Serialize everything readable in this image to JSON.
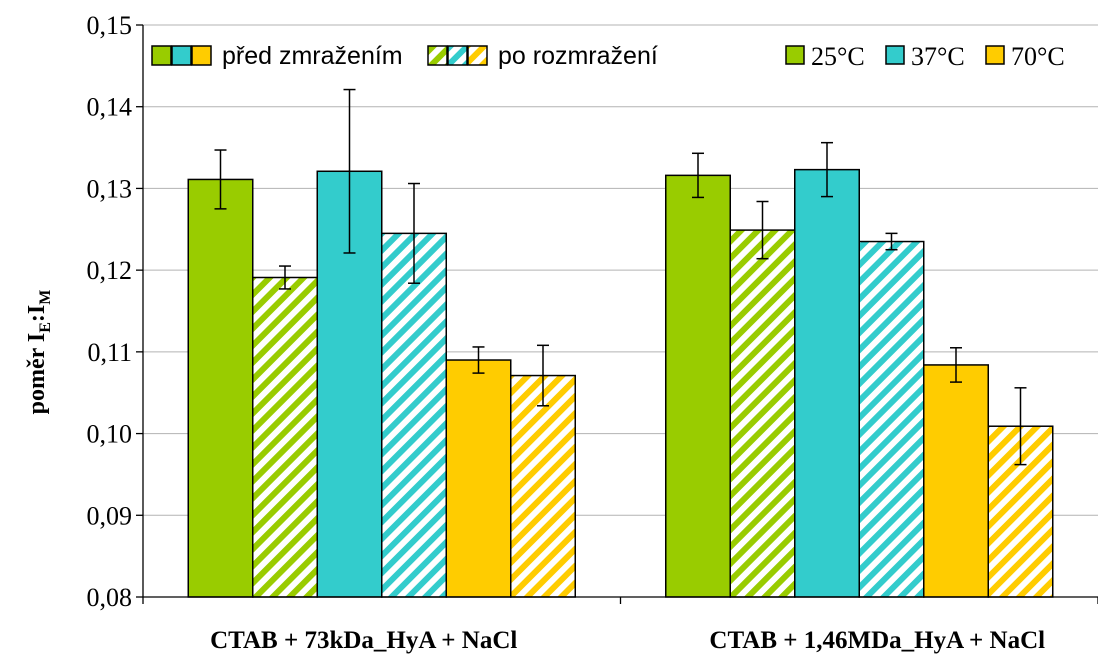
{
  "chart_data": {
    "type": "bar",
    "ylabel": {
      "main": "poměr I",
      "sub1": "E",
      "sep": ":I",
      "sub2": "M"
    },
    "ylim": [
      0.08,
      0.15
    ],
    "y_ticks": [
      "0,08",
      "0,09",
      "0,10",
      "0,11",
      "0,12",
      "0,13",
      "0,14",
      "0,15"
    ],
    "grid": true,
    "categories": [
      "CTAB + 73kDa_HyA + NaCl",
      "CTAB + 1,46MDa_HyA + NaCl"
    ],
    "series": [
      {
        "name": "25°C, před zmražením",
        "color": "#99cc00",
        "hatched": false,
        "values": [
          0.1311,
          0.1316
        ],
        "errors": [
          0.0036,
          0.0027
        ]
      },
      {
        "name": "25°C, po rozmražení",
        "color": "#99cc00",
        "hatched": true,
        "values": [
          0.1191,
          0.1249
        ],
        "errors": [
          0.0014,
          0.0035
        ]
      },
      {
        "name": "37°C, před zmražením",
        "color": "#33cccc",
        "hatched": false,
        "values": [
          0.1321,
          0.1323
        ],
        "errors": [
          0.01,
          0.0033
        ]
      },
      {
        "name": "37°C, po rozmražení",
        "color": "#33cccc",
        "hatched": true,
        "values": [
          0.1245,
          0.1235
        ],
        "errors": [
          0.0061,
          0.001
        ]
      },
      {
        "name": "70°C, před zmražením",
        "color": "#ffcc00",
        "hatched": false,
        "values": [
          0.109,
          0.1084
        ],
        "errors": [
          0.0016,
          0.0021
        ]
      },
      {
        "name": "70°C, po rozmražení",
        "color": "#ffcc00",
        "hatched": true,
        "values": [
          0.1071,
          0.1009
        ],
        "errors": [
          0.0037,
          0.0047
        ]
      }
    ],
    "legend": {
      "placement": "top",
      "style_items": [
        "před zmražením",
        "po rozmražení"
      ],
      "temperature_items": [
        {
          "label": "25°C",
          "color": "#99cc00"
        },
        {
          "label": "37°C",
          "color": "#33cccc"
        },
        {
          "label": "70°C",
          "color": "#ffcc00"
        }
      ]
    }
  }
}
